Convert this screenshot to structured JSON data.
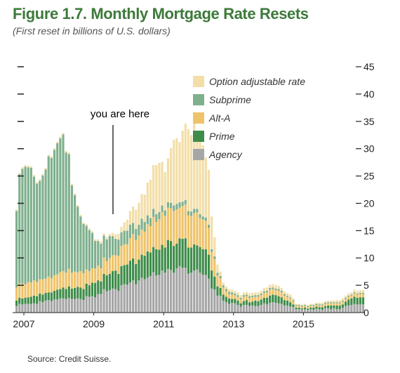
{
  "figure": {
    "title": "Figure 1.7. Monthly Mortgage Rate Resets",
    "subtitle": "(First reset in billions of U.S. dollars)",
    "source": "Source: Credit Suisse."
  },
  "annotation": {
    "text": "you are here"
  },
  "colors": {
    "Option adjustable rate": "#f3dea8",
    "Subprime": "#7fb08e",
    "Alt-A": "#eec36a",
    "Prime": "#3e8c4a",
    "Agency": "#a6a6a6",
    "title": "#3d7a3a"
  },
  "chart_data": {
    "type": "bar",
    "stacked": true,
    "x_tick_labels": [
      "2007",
      "2009",
      "2011",
      "2013",
      "2015"
    ],
    "y_tick_labels": [
      "0",
      "5",
      "10",
      "15",
      "20",
      "25",
      "30",
      "35",
      "40",
      "45"
    ],
    "ylim": [
      0,
      45
    ],
    "xlim": [
      "2007-01",
      "2016-08"
    ],
    "legend_position": "top-right",
    "series": [
      {
        "name": "Agency",
        "values": [
          1.2,
          1.6,
          1.5,
          1.6,
          1.6,
          1.6,
          1.7,
          1.6,
          2.1,
          1.9,
          2.2,
          2.3,
          2.1,
          2.4,
          2.4,
          2.6,
          2.6,
          2.5,
          2.7,
          2.5,
          2.5,
          2.6,
          2.5,
          2.3,
          3.0,
          2.9,
          3.0,
          2.8,
          3.4,
          3.4,
          4.3,
          3.9,
          4.1,
          4.4,
          4.3,
          4.0,
          5.0,
          5.2,
          5.1,
          5.5,
          5.9,
          5.2,
          5.9,
          6.4,
          6.1,
          6.4,
          6.7,
          7.4,
          6.8,
          6.9,
          7.7,
          7.3,
          8.0,
          7.8,
          7.3,
          8.1,
          8.5,
          8.2,
          8.2,
          7.1,
          7.3,
          7.7,
          7.9,
          7.3,
          6.9,
          6.9,
          6.2,
          4.4,
          4.2,
          3.1,
          3.1,
          2.2,
          1.9,
          1.6,
          1.8,
          1.7,
          1.4,
          1.1,
          1.4,
          1.4,
          1.2,
          1.3,
          1.2,
          1.2,
          1.4,
          1.7,
          1.5,
          1.8,
          1.9,
          1.8,
          1.7,
          1.6,
          1.3,
          1.3,
          1.1,
          1.0,
          0.6,
          0.6,
          0.6,
          0.6,
          0.5,
          0.6,
          0.5,
          0.7,
          0.6,
          0.5,
          0.8,
          0.8,
          0.6,
          0.8,
          0.6,
          0.6,
          0.9,
          1.2,
          1.3,
          1.4,
          1.6,
          1.5,
          1.5,
          1.5
        ]
      },
      {
        "name": "Prime",
        "values": [
          1.0,
          1.1,
          1.1,
          1.1,
          1.2,
          1.3,
          1.4,
          1.4,
          1.4,
          1.4,
          1.4,
          1.4,
          1.6,
          1.6,
          1.8,
          1.7,
          2.0,
          1.8,
          2.1,
          1.9,
          2.0,
          2.1,
          2.1,
          2.0,
          2.3,
          2.1,
          2.5,
          2.6,
          2.5,
          2.3,
          2.8,
          2.9,
          3.0,
          3.2,
          3.4,
          3.1,
          3.5,
          3.5,
          3.7,
          4.0,
          4.0,
          3.7,
          3.8,
          4.2,
          4.3,
          4.8,
          4.3,
          4.6,
          4.8,
          4.6,
          4.7,
          4.6,
          5.3,
          5.3,
          4.9,
          4.5,
          5.1,
          5.3,
          5.4,
          4.8,
          4.6,
          4.8,
          4.4,
          4.7,
          4.7,
          4.7,
          4.4,
          3.3,
          2.4,
          1.7,
          1.4,
          1.1,
          1.0,
          1.0,
          0.7,
          0.8,
          0.8,
          0.6,
          0.7,
          0.9,
          0.7,
          0.7,
          1.0,
          0.9,
          1.0,
          1.0,
          1.2,
          1.3,
          1.4,
          1.4,
          1.3,
          1.2,
          1.0,
          0.9,
          0.8,
          0.5,
          0.3,
          0.3,
          0.2,
          0.3,
          0.2,
          0.3,
          0.4,
          0.4,
          0.4,
          0.5,
          0.4,
          0.5,
          0.7,
          0.5,
          0.7,
          0.7,
          0.6,
          0.8,
          1.1,
          1.2,
          1.3,
          1.2,
          1.3,
          1.3
        ]
      },
      {
        "name": "Alt-A",
        "values": [
          2.4,
          2.6,
          2.7,
          2.5,
          2.8,
          2.6,
          2.8,
          2.6,
          2.6,
          2.8,
          2.6,
          2.9,
          2.6,
          2.8,
          2.8,
          3.1,
          3.0,
          3.0,
          3.2,
          2.9,
          3.0,
          2.7,
          3.0,
          2.9,
          2.6,
          2.6,
          2.6,
          2.7,
          2.7,
          2.4,
          3.0,
          2.6,
          2.9,
          2.9,
          2.8,
          3.3,
          3.7,
          3.8,
          3.7,
          4.1,
          4.5,
          4.4,
          4.4,
          4.6,
          4.4,
          5.0,
          4.8,
          5.5,
          5.0,
          5.6,
          6.0,
          5.8,
          5.9,
          6.0,
          6.4,
          6.3,
          5.6,
          6.0,
          6.2,
          5.9,
          5.8,
          5.7,
          6.0,
          5.3,
          5.4,
          5.2,
          4.9,
          3.4,
          3.2,
          2.0,
          1.8,
          1.3,
          1.0,
          0.8,
          0.8,
          0.7,
          0.7,
          0.7,
          0.8,
          0.7,
          0.8,
          0.8,
          0.7,
          0.8,
          0.8,
          0.9,
          1.0,
          1.1,
          1.0,
          0.9,
          1.0,
          0.9,
          0.8,
          0.7,
          0.7,
          0.6,
          0.3,
          0.3,
          0.3,
          0.3,
          0.3,
          0.3,
          0.3,
          0.3,
          0.3,
          0.3,
          0.4,
          0.4,
          0.4,
          0.4,
          0.4,
          0.4,
          0.5,
          0.5,
          0.5,
          0.5,
          0.6,
          0.6,
          0.6,
          0.6
        ]
      },
      {
        "name": "Subprime",
        "values": [
          14.0,
          20.0,
          21.0,
          21.5,
          21.0,
          21.0,
          19.0,
          18.0,
          18.0,
          19.0,
          20.0,
          22.0,
          22.0,
          23.0,
          24.0,
          24.5,
          25.0,
          22.0,
          21.0,
          16.0,
          14.0,
          12.0,
          10.0,
          9.0,
          8.0,
          7.5,
          6.5,
          5.0,
          4.5,
          4.5,
          4.0,
          4.0,
          4.0,
          3.5,
          3.0,
          3.0,
          2.5,
          2.5,
          2.5,
          2.5,
          2.0,
          2.0,
          2.0,
          2.0,
          1.8,
          1.6,
          1.5,
          1.5,
          1.4,
          1.3,
          1.2,
          1.0,
          1.0,
          1.0,
          1.0,
          1.0,
          1.0,
          0.8,
          0.8,
          0.8,
          0.8,
          0.8,
          0.7,
          0.7,
          0.6,
          0.6,
          0.6,
          0.5,
          0.5,
          0.5,
          0.4,
          0.4,
          0.4,
          0.4,
          0.4,
          0.3,
          0.3,
          0.3,
          0.3,
          0.3,
          0.3,
          0.3,
          0.3,
          0.3,
          0.3,
          0.3,
          0.3,
          0.3,
          0.3,
          0.3,
          0.3,
          0.3,
          0.3,
          0.2,
          0.2,
          0.2,
          0.2,
          0.2,
          0.2,
          0.2,
          0.2,
          0.2,
          0.2,
          0.2,
          0.2,
          0.2,
          0.2,
          0.2,
          0.2,
          0.2,
          0.2,
          0.2,
          0.2,
          0.2,
          0.2,
          0.2,
          0.2,
          0.2,
          0.2,
          0.2
        ]
      },
      {
        "name": "Option adjustable rate",
        "values": [
          0.3,
          0.3,
          0.3,
          0.3,
          0.3,
          0.3,
          0.3,
          0.3,
          0.3,
          0.3,
          0.3,
          0.3,
          0.3,
          0.3,
          0.3,
          0.3,
          0.3,
          0.3,
          0.3,
          0.3,
          0.3,
          0.3,
          0.3,
          0.3,
          0.3,
          0.3,
          0.3,
          0.3,
          0.3,
          0.4,
          0.4,
          0.4,
          0.4,
          0.6,
          0.8,
          1.0,
          1.0,
          1.5,
          2.0,
          2.5,
          3.0,
          3.5,
          4.0,
          4.5,
          5.0,
          6.0,
          7.0,
          8.0,
          9.0,
          9.0,
          8.0,
          7.0,
          8.0,
          10.0,
          12.0,
          12.0,
          11.0,
          13.0,
          14.0,
          15.0,
          14.0,
          17.5,
          13.0,
          14.0,
          13.0,
          11.0,
          10.0,
          6.0,
          3.5,
          1.5,
          0.8,
          0.5,
          0.5,
          0.5,
          0.5,
          0.5,
          0.5,
          0.5,
          0.5,
          0.5,
          0.5,
          0.5,
          0.5,
          0.5,
          0.5,
          0.6,
          0.6,
          0.6,
          0.6,
          0.6,
          0.6,
          0.5,
          0.5,
          0.5,
          0.5,
          0.3,
          0.2,
          0.2,
          0.2,
          0.2,
          0.2,
          0.2,
          0.2,
          0.2,
          0.3,
          0.3,
          0.3,
          0.3,
          0.3,
          0.3,
          0.4,
          0.4,
          0.4,
          0.4,
          0.4,
          0.4,
          0.5,
          0.5,
          0.5,
          0.5
        ]
      }
    ]
  }
}
